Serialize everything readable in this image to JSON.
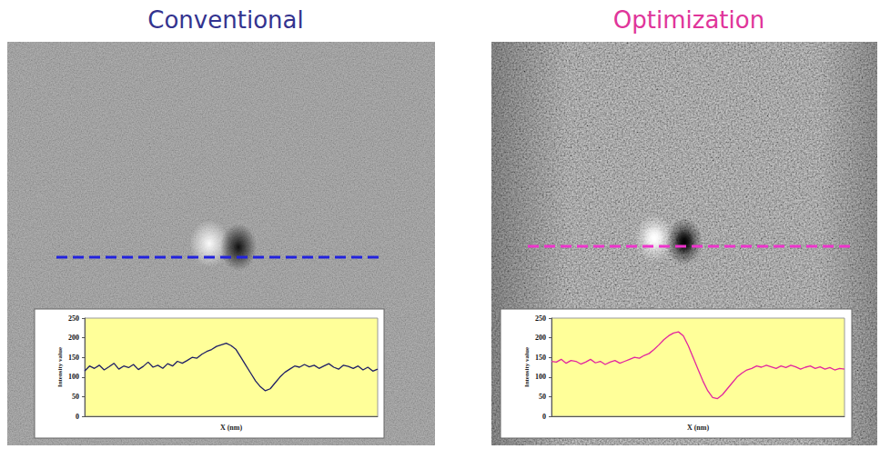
{
  "chart_data": [
    {
      "type": "line",
      "title": "Conventional",
      "x_label": "X (nm)",
      "y_label": "Intensity value",
      "x": [
        0,
        1,
        2,
        3,
        4,
        5,
        6,
        7,
        8,
        9,
        10,
        11,
        12,
        13,
        14,
        15,
        16,
        17,
        18,
        19,
        20,
        21,
        22,
        23,
        24,
        25,
        26,
        27,
        28,
        29,
        30,
        31,
        32,
        33,
        34,
        35,
        36,
        37,
        38,
        39,
        40,
        41,
        42,
        43,
        44,
        45,
        46,
        47,
        48,
        49,
        50,
        51,
        52,
        53,
        54,
        55,
        56,
        57,
        58,
        59,
        60
      ],
      "values": [
        115,
        128,
        122,
        130,
        118,
        126,
        135,
        120,
        128,
        124,
        132,
        119,
        127,
        138,
        125,
        130,
        122,
        134,
        128,
        140,
        135,
        142,
        150,
        148,
        158,
        165,
        170,
        178,
        182,
        186,
        180,
        170,
        150,
        130,
        110,
        90,
        75,
        65,
        70,
        85,
        100,
        112,
        120,
        128,
        125,
        132,
        126,
        130,
        122,
        128,
        134,
        125,
        120,
        130,
        127,
        122,
        128,
        118,
        125,
        115,
        120
      ],
      "color": "#1f1f66",
      "xlim": [
        0,
        60
      ],
      "ylim": [
        0,
        250
      ],
      "yticks": [
        0,
        50,
        100,
        150,
        200,
        250
      ],
      "tick_labels": "y",
      "grid": false
    },
    {
      "type": "line",
      "title": "Optimization",
      "x_label": "X (nm)",
      "y_label": "Intensity value",
      "x": [
        0,
        1,
        2,
        3,
        4,
        5,
        6,
        7,
        8,
        9,
        10,
        11,
        12,
        13,
        14,
        15,
        16,
        17,
        18,
        19,
        20,
        21,
        22,
        23,
        24,
        25,
        26,
        27,
        28,
        29,
        30,
        31,
        32,
        33,
        34,
        35,
        36,
        37,
        38,
        39,
        40,
        41,
        42,
        43,
        44,
        45,
        46,
        47,
        48,
        49,
        50,
        51,
        52,
        53,
        54,
        55,
        56,
        57,
        58,
        59,
        60
      ],
      "values": [
        140,
        138,
        145,
        135,
        142,
        140,
        133,
        138,
        145,
        136,
        140,
        132,
        138,
        142,
        135,
        140,
        145,
        150,
        148,
        155,
        160,
        170,
        182,
        195,
        205,
        212,
        215,
        205,
        180,
        150,
        120,
        90,
        65,
        48,
        45,
        55,
        70,
        85,
        100,
        110,
        118,
        122,
        128,
        125,
        130,
        126,
        122,
        128,
        124,
        130,
        126,
        120,
        125,
        128,
        122,
        126,
        120,
        124,
        118,
        122,
        120
      ],
      "color": "#e2259f",
      "xlim": [
        0,
        60
      ],
      "ylim": [
        0,
        250
      ],
      "yticks": [
        0,
        50,
        100,
        150,
        200,
        250
      ],
      "tick_labels": "y",
      "grid": false
    }
  ]
}
